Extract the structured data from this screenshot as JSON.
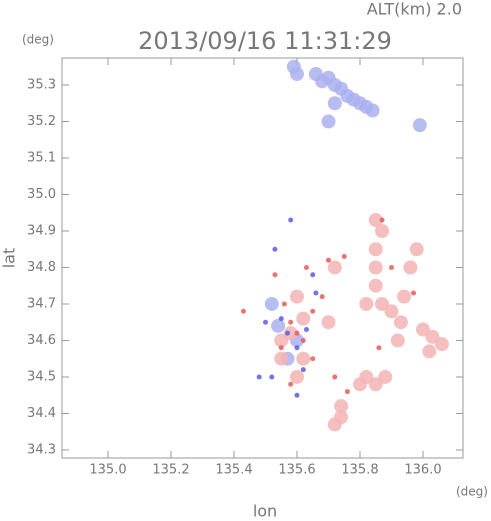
{
  "chart_data": {
    "type": "scatter",
    "title": "2013/09/16 11:31:29",
    "subtitle": "ALT(km) 2.0",
    "y_unit": "(deg)",
    "x_unit": "(deg)",
    "x_label": "lon",
    "y_label": "lat",
    "xlim": [
      134.854,
      136.127
    ],
    "ylim": [
      34.278,
      35.374
    ],
    "xticks": [
      {
        "value": 135.0,
        "label": "135.0"
      },
      135.2,
      135.4,
      135.6,
      135.8,
      {
        "value": 136.0,
        "label": "136.0"
      }
    ],
    "yticks": [
      34.3,
      34.4,
      34.5,
      34.6,
      34.7,
      34.8,
      34.9,
      {
        "value": 35.0,
        "label": "35.0"
      },
      35.1,
      35.2,
      35.3
    ],
    "series": [
      {
        "color": "#aab0ee",
        "x": [
          135.59,
          135.6,
          135.66,
          135.68,
          135.7,
          135.72,
          135.74,
          135.76,
          135.78,
          135.8,
          135.82,
          135.84,
          135.72,
          135.7,
          135.99,
          135.54,
          135.6,
          135.57,
          135.52
        ],
        "values": [
          35.35,
          35.33,
          35.33,
          35.31,
          35.32,
          35.3,
          35.29,
          35.27,
          35.26,
          35.25,
          35.24,
          35.23,
          35.25,
          35.2,
          35.19,
          34.64,
          34.6,
          34.55,
          34.7
        ]
      },
      {
        "color": "#f5b4b4",
        "x": [
          135.85,
          135.87,
          135.85,
          135.85,
          135.85,
          135.82,
          135.87,
          135.9,
          135.94,
          135.93,
          136.0,
          136.03,
          136.06,
          136.02,
          135.92,
          135.85,
          135.82,
          135.8,
          135.88,
          135.74,
          135.74,
          135.72,
          135.6,
          135.62,
          135.58,
          135.55,
          135.55,
          135.62,
          135.6,
          135.7,
          135.72,
          135.98,
          135.96
        ],
        "values": [
          34.93,
          34.9,
          34.85,
          34.8,
          34.75,
          34.7,
          34.7,
          34.68,
          34.72,
          34.65,
          34.63,
          34.61,
          34.59,
          34.57,
          34.6,
          34.48,
          34.5,
          34.48,
          34.5,
          34.42,
          34.39,
          34.37,
          34.72,
          34.66,
          34.62,
          34.6,
          34.55,
          34.55,
          34.5,
          34.65,
          34.8,
          34.85,
          34.8
        ]
      },
      {
        "color": "#e85a5a",
        "x": [
          135.56,
          135.58,
          135.6,
          135.55,
          135.62,
          135.65,
          135.68,
          135.63,
          135.7,
          135.75,
          135.87,
          135.9,
          135.97,
          135.86,
          135.72,
          135.76,
          135.43,
          135.53,
          135.65,
          135.58
        ],
        "values": [
          34.7,
          34.65,
          34.62,
          34.58,
          34.6,
          34.68,
          34.72,
          34.8,
          34.82,
          34.83,
          34.93,
          34.8,
          34.73,
          34.58,
          34.5,
          34.46,
          34.68,
          34.78,
          34.55,
          34.48
        ]
      },
      {
        "color": "#5a5ae6",
        "x": [
          135.55,
          135.57,
          135.6,
          135.63,
          135.52,
          135.48,
          135.6,
          135.66,
          135.53,
          135.58,
          135.65,
          135.62,
          135.5
        ],
        "values": [
          34.66,
          34.62,
          34.58,
          34.63,
          34.5,
          34.5,
          34.45,
          34.73,
          34.85,
          34.93,
          34.78,
          34.52,
          34.65
        ]
      }
    ]
  }
}
